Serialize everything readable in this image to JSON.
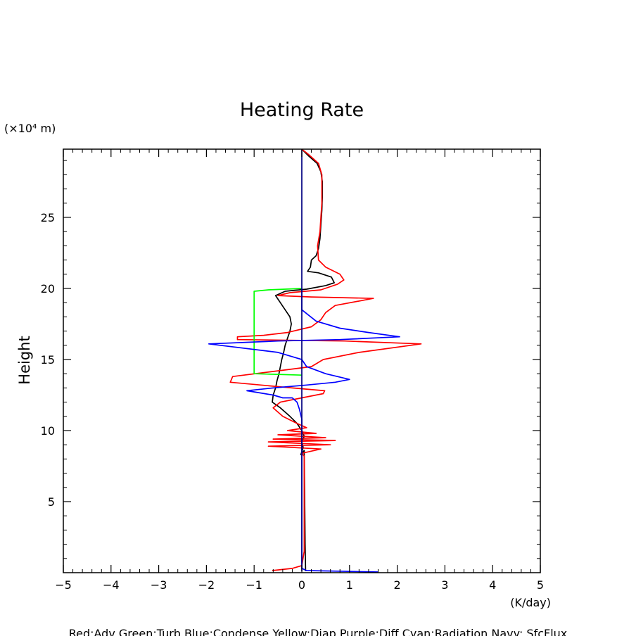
{
  "chart_data": {
    "type": "line",
    "title": "Heating Rate",
    "xlabel": "(K/day)",
    "ylabel": "Height",
    "yunit": "(×10⁴ m)",
    "xlim": [
      -5,
      5
    ],
    "ylim": [
      0,
      29.8
    ],
    "xticks": [
      -5,
      -4,
      -3,
      -2,
      -1,
      0,
      1,
      2,
      3,
      4,
      5
    ],
    "yticks": [
      5,
      10,
      15,
      20,
      25
    ],
    "grid": false,
    "legend": "Red:Adv  Green:Turb  Blue:Condense  Yellow:Diap  Purple:Diff  Cyan:Radiation  Navy: SfcFlux",
    "series": [
      {
        "color": "#000000",
        "points": [
          [
            0.08,
            0.1
          ],
          [
            0.07,
            2
          ],
          [
            0.06,
            5
          ],
          [
            0.05,
            8
          ],
          [
            0.05,
            8.6
          ],
          [
            -0.02,
            8.3
          ],
          [
            0.03,
            8.8
          ],
          [
            0.0,
            9.2
          ],
          [
            0.05,
            9.6
          ],
          [
            0.0,
            10.0
          ],
          [
            -0.1,
            10.5
          ],
          [
            -0.25,
            11.0
          ],
          [
            -0.45,
            11.6
          ],
          [
            -0.62,
            12.0
          ],
          [
            -0.6,
            12.5
          ],
          [
            -0.55,
            13.0
          ],
          [
            -0.52,
            13.5
          ],
          [
            -0.48,
            14.0
          ],
          [
            -0.45,
            14.5
          ],
          [
            -0.42,
            15.0
          ],
          [
            -0.38,
            15.5
          ],
          [
            -0.35,
            16.0
          ],
          [
            -0.3,
            16.5
          ],
          [
            -0.25,
            17.0
          ],
          [
            -0.22,
            17.5
          ],
          [
            -0.25,
            18.0
          ],
          [
            -0.35,
            18.5
          ],
          [
            -0.45,
            19.0
          ],
          [
            -0.55,
            19.5
          ],
          [
            -0.35,
            19.8
          ],
          [
            0.1,
            19.95
          ],
          [
            0.5,
            20.2
          ],
          [
            0.68,
            20.4
          ],
          [
            0.62,
            20.8
          ],
          [
            0.35,
            21.1
          ],
          [
            0.12,
            21.2
          ],
          [
            0.18,
            21.5
          ],
          [
            0.2,
            22.0
          ],
          [
            0.3,
            22.3
          ],
          [
            0.35,
            22.8
          ],
          [
            0.38,
            23.5
          ],
          [
            0.4,
            24.5
          ],
          [
            0.42,
            25.5
          ],
          [
            0.43,
            26.5
          ],
          [
            0.43,
            27.5
          ],
          [
            0.4,
            28.2
          ],
          [
            0.32,
            28.8
          ],
          [
            0.15,
            29.3
          ],
          [
            0.0,
            29.8
          ]
        ]
      },
      {
        "color": "#ff0000",
        "points": [
          [
            -0.62,
            0.15
          ],
          [
            -0.2,
            0.3
          ],
          [
            0.0,
            0.5
          ],
          [
            0.05,
            1.5
          ],
          [
            0.05,
            5
          ],
          [
            0.05,
            8.2
          ],
          [
            0.0,
            8.4
          ],
          [
            0.4,
            8.7
          ],
          [
            -0.7,
            8.9
          ],
          [
            0.6,
            9.0
          ],
          [
            -0.7,
            9.2
          ],
          [
            0.7,
            9.3
          ],
          [
            -0.6,
            9.4
          ],
          [
            0.5,
            9.5
          ],
          [
            -0.5,
            9.7
          ],
          [
            0.3,
            9.8
          ],
          [
            -0.3,
            10.0
          ],
          [
            0.1,
            10.2
          ],
          [
            -0.1,
            10.5
          ],
          [
            -0.4,
            11.0
          ],
          [
            -0.6,
            11.6
          ],
          [
            -0.45,
            12.0
          ],
          [
            0.0,
            12.3
          ],
          [
            0.45,
            12.6
          ],
          [
            0.48,
            12.8
          ],
          [
            -0.2,
            13.0
          ],
          [
            -1.5,
            13.4
          ],
          [
            -1.45,
            13.8
          ],
          [
            -0.5,
            14.2
          ],
          [
            0.2,
            14.5
          ],
          [
            0.45,
            15.0
          ],
          [
            1.2,
            15.5
          ],
          [
            2.5,
            16.1
          ],
          [
            0.9,
            16.3
          ],
          [
            -1.35,
            16.4
          ],
          [
            -1.35,
            16.6
          ],
          [
            -0.8,
            16.7
          ],
          [
            -0.3,
            16.9
          ],
          [
            0.2,
            17.3
          ],
          [
            0.4,
            17.8
          ],
          [
            0.5,
            18.3
          ],
          [
            0.7,
            18.8
          ],
          [
            1.5,
            19.3
          ],
          [
            0.2,
            19.4
          ],
          [
            -0.5,
            19.5
          ],
          [
            -0.25,
            19.7
          ],
          [
            0.4,
            19.9
          ],
          [
            0.75,
            20.3
          ],
          [
            0.88,
            20.6
          ],
          [
            0.8,
            21.0
          ],
          [
            0.5,
            21.5
          ],
          [
            0.35,
            22.0
          ],
          [
            0.33,
            23.0
          ],
          [
            0.38,
            24.0
          ],
          [
            0.4,
            25.0
          ],
          [
            0.42,
            26.0
          ],
          [
            0.42,
            27.0
          ],
          [
            0.42,
            28.0
          ],
          [
            0.35,
            28.8
          ],
          [
            0.15,
            29.4
          ],
          [
            0.0,
            29.8
          ]
        ]
      },
      {
        "color": "#00ff00",
        "points": [
          [
            0.0,
            13.9
          ],
          [
            -1.0,
            14.0
          ],
          [
            -1.0,
            16.0
          ],
          [
            -1.0,
            19.8
          ],
          [
            -0.7,
            19.9
          ],
          [
            0.0,
            20.0
          ]
        ]
      },
      {
        "color": "#0000ff",
        "points": [
          [
            1.6,
            0.05
          ],
          [
            0.1,
            0.15
          ],
          [
            0.0,
            0.3
          ],
          [
            0.0,
            10.8
          ],
          [
            -0.05,
            11.5
          ],
          [
            -0.1,
            12.0
          ],
          [
            -0.2,
            12.3
          ],
          [
            -0.4,
            12.3
          ],
          [
            -0.6,
            12.5
          ],
          [
            -1.15,
            12.8
          ],
          [
            -0.6,
            13.0
          ],
          [
            0.1,
            13.2
          ],
          [
            0.7,
            13.4
          ],
          [
            1.0,
            13.6
          ],
          [
            0.5,
            14.0
          ],
          [
            0.1,
            14.5
          ],
          [
            0.0,
            15.0
          ],
          [
            -0.5,
            15.5
          ],
          [
            -1.95,
            16.1
          ],
          [
            -0.5,
            16.3
          ],
          [
            0.8,
            16.4
          ],
          [
            2.05,
            16.6
          ],
          [
            1.4,
            16.9
          ],
          [
            0.8,
            17.2
          ],
          [
            0.3,
            17.7
          ],
          [
            0.0,
            18.5
          ],
          [
            0.0,
            20.0
          ]
        ]
      },
      {
        "color": "#000080",
        "points": [
          [
            0.0,
            0.1
          ],
          [
            0.0,
            29.8
          ]
        ]
      }
    ]
  }
}
